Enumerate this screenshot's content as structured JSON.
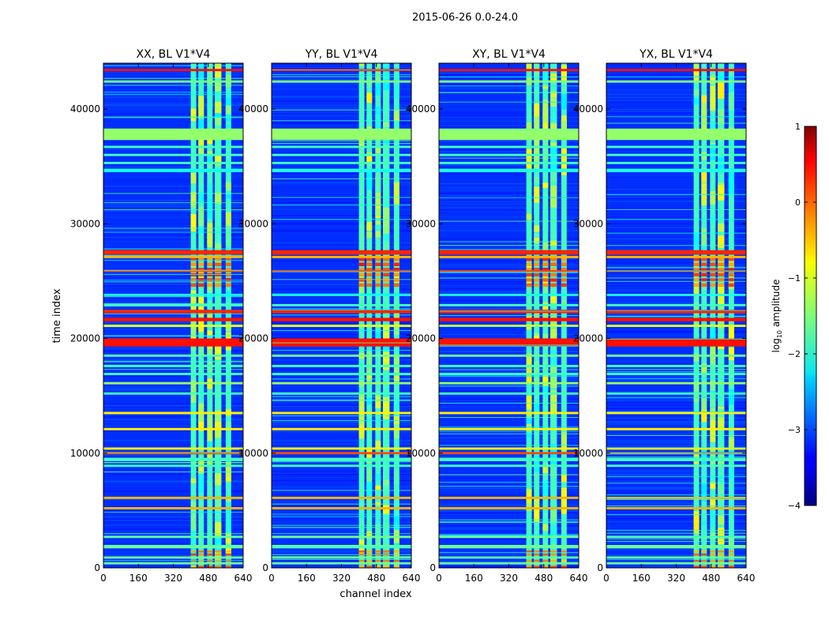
{
  "figure": {
    "suptitle": "2015-06-26 0.0-24.0"
  },
  "chart_data": {
    "type": "heatmap",
    "xlabel": "channel index",
    "ylabel": "time index",
    "xlim": [
      0,
      640
    ],
    "ylim": [
      0,
      44000
    ],
    "xticks": [
      0,
      160,
      320,
      480,
      640
    ],
    "yticks": [
      0,
      10000,
      20000,
      30000,
      40000
    ],
    "xtick_labels": [
      "0",
      "160",
      "320",
      "480",
      "640"
    ],
    "ytick_labels": [
      "0",
      "10000",
      "20000",
      "30000",
      "40000"
    ],
    "panels": [
      {
        "title": "XX, BL V1*V4",
        "pol": "XX",
        "strong_low_channels": false
      },
      {
        "title": "YY, BL V1*V4",
        "pol": "YY",
        "strong_low_channels": true
      },
      {
        "title": "XY, BL V1*V4",
        "pol": "XY",
        "strong_low_channels": false
      },
      {
        "title": "YX, BL V1*V4",
        "pol": "YX",
        "strong_low_channels": false
      }
    ],
    "colorbar": {
      "label": "log10 amplitude",
      "label_base": "log",
      "label_sub": "10",
      "label_rest": " amplitude",
      "range": [
        -4,
        1
      ],
      "ticks": [
        1,
        0,
        -1,
        -2,
        -3,
        -4
      ],
      "tick_labels": [
        "1",
        "0",
        "−1",
        "−2",
        "−3",
        "−4"
      ],
      "colormap": "jet"
    },
    "rfi_channel_bands": [
      [
        400,
        425
      ],
      [
        435,
        460
      ],
      [
        475,
        500
      ],
      [
        510,
        540
      ],
      [
        560,
        585
      ]
    ],
    "rfi_time_bands": [
      {
        "t0": 43300,
        "t1": 43500,
        "v": 0.3
      },
      {
        "t0": 42300,
        "t1": 42500,
        "v": -1.5
      },
      {
        "t0": 37300,
        "t1": 38300,
        "v": -1.4
      },
      {
        "t0": 36600,
        "t1": 36800,
        "v": -1.8
      },
      {
        "t0": 35900,
        "t1": 36100,
        "v": -1.8
      },
      {
        "t0": 35200,
        "t1": 35400,
        "v": -1.8
      },
      {
        "t0": 34500,
        "t1": 34800,
        "v": -2.0
      },
      {
        "t0": 27300,
        "t1": 27700,
        "v": 0.2
      },
      {
        "t0": 27000,
        "t1": 27200,
        "v": -0.5
      },
      {
        "t0": 25800,
        "t1": 25950,
        "v": 0.0
      },
      {
        "t0": 23700,
        "t1": 23900,
        "v": -2.0
      },
      {
        "t0": 22800,
        "t1": 23000,
        "v": -1.8
      },
      {
        "t0": 22200,
        "t1": 22500,
        "v": 0.2
      },
      {
        "t0": 21500,
        "t1": 21800,
        "v": 0.3
      },
      {
        "t0": 21000,
        "t1": 21200,
        "v": -1.0
      },
      {
        "t0": 19300,
        "t1": 20000,
        "v": 0.3
      },
      {
        "t0": 18400,
        "t1": 18600,
        "v": -1.6
      },
      {
        "t0": 17500,
        "t1": 17700,
        "v": -1.8
      },
      {
        "t0": 16800,
        "t1": 17000,
        "v": -1.8
      },
      {
        "t0": 16000,
        "t1": 16200,
        "v": -1.4
      },
      {
        "t0": 15100,
        "t1": 15300,
        "v": -1.8
      },
      {
        "t0": 13400,
        "t1": 13600,
        "v": -0.8
      },
      {
        "t0": 12000,
        "t1": 12200,
        "v": -0.8
      },
      {
        "t0": 10300,
        "t1": 10500,
        "v": -0.8
      },
      {
        "t0": 9900,
        "t1": 10100,
        "v": 0.0
      },
      {
        "t0": 9300,
        "t1": 9600,
        "v": -1.8
      },
      {
        "t0": 8800,
        "t1": 9000,
        "v": -1.8
      },
      {
        "t0": 6000,
        "t1": 6200,
        "v": -0.5
      },
      {
        "t0": 5100,
        "t1": 5300,
        "v": -0.5
      },
      {
        "t0": 2600,
        "t1": 2800,
        "v": -1.6
      },
      {
        "t0": 1700,
        "t1": 2000,
        "v": -1.6
      },
      {
        "t0": 800,
        "t1": 1000,
        "v": -1.6
      },
      {
        "t0": 300,
        "t1": 500,
        "v": -1.6
      }
    ],
    "hot_regions": [
      {
        "t0": 24500,
        "t1": 27200,
        "v": 0.3
      },
      {
        "t0": 0,
        "t1": 1600,
        "v": 0.1
      }
    ]
  }
}
